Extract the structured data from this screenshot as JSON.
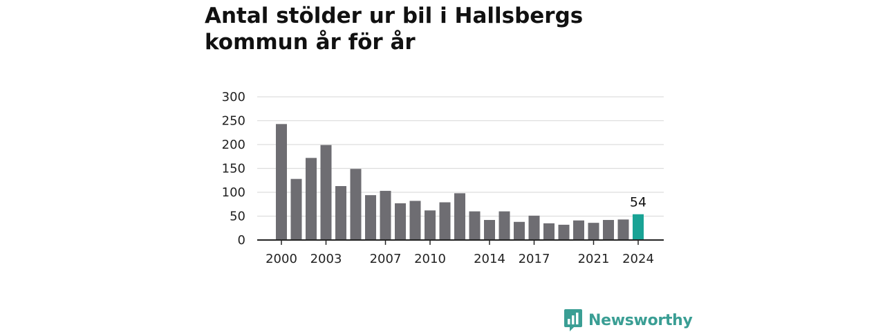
{
  "title": "Antal stölder ur bil i Hallsbergs kommun år för år",
  "brand": {
    "name": "Newsworthy",
    "logo_icon": "newsworthy-logo-icon",
    "color": "#3a9e94"
  },
  "colors": {
    "bar": "#6e6d72",
    "highlight": "#19a395",
    "grid": "#dddddd",
    "axis": "#222222"
  },
  "chart_data": {
    "type": "bar",
    "title": "Antal stölder ur bil i Hallsbergs kommun år för år",
    "xlabel": "",
    "ylabel": "",
    "ylim": [
      0,
      300
    ],
    "yticks": [
      "0",
      "50",
      "100",
      "150",
      "200",
      "250",
      "300"
    ],
    "xtick_labels": [
      "2000",
      "2003",
      "2007",
      "2010",
      "2014",
      "2017",
      "2021",
      "2024"
    ],
    "categories": [
      "2000",
      "2001",
      "2002",
      "2003",
      "2004",
      "2005",
      "2006",
      "2007",
      "2008",
      "2009",
      "2010",
      "2011",
      "2012",
      "2013",
      "2014",
      "2015",
      "2016",
      "2017",
      "2018",
      "2019",
      "2020",
      "2021",
      "2022",
      "2023",
      "2024"
    ],
    "values": [
      243,
      128,
      172,
      199,
      113,
      149,
      94,
      103,
      77,
      82,
      62,
      79,
      98,
      60,
      42,
      60,
      38,
      51,
      35,
      32,
      41,
      36,
      42,
      43,
      54
    ],
    "highlight_index": 24,
    "data_labels": [
      {
        "category": "2024",
        "text": "54"
      }
    ],
    "grid": true,
    "legend": "none"
  }
}
